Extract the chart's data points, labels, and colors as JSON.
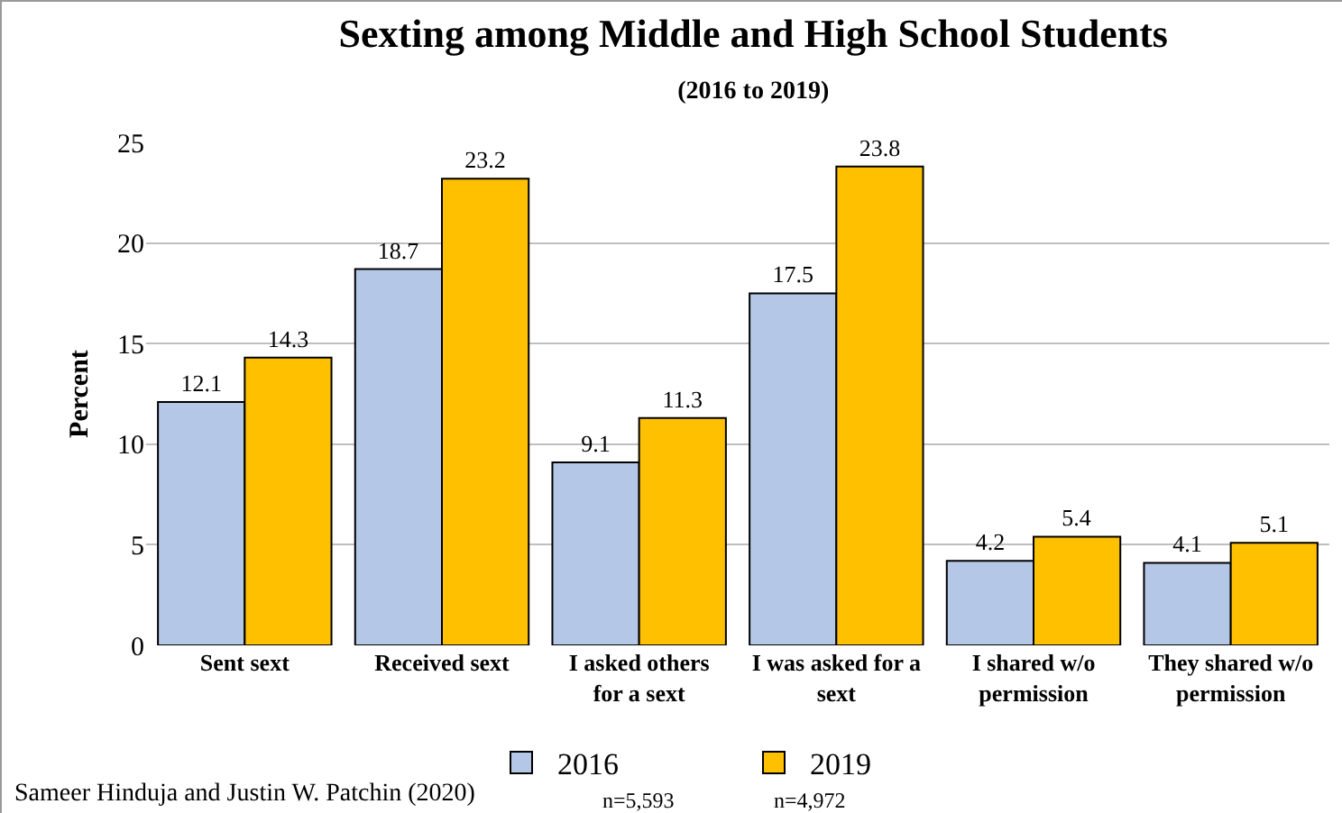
{
  "chart_data": {
    "type": "bar",
    "title": "Sexting among Middle and High School Students",
    "subtitle": "(2016 to 2019)",
    "ylabel": "Percent",
    "categories": [
      "Sent sext",
      "Received sext",
      "I asked others for a sext",
      "I was asked for a sext",
      "I shared w/o permission",
      "They shared w/o permission"
    ],
    "series": [
      {
        "name": "2016",
        "color": "#b4c7e7",
        "values": [
          12.1,
          18.7,
          9.1,
          17.5,
          4.2,
          4.1
        ]
      },
      {
        "name": "2019",
        "color": "#ffc000",
        "values": [
          14.3,
          23.2,
          11.3,
          23.8,
          5.4,
          5.1
        ]
      }
    ],
    "ylim": [
      0,
      25
    ],
    "yticks": [
      0,
      5,
      10,
      15,
      20,
      25
    ],
    "grid": "y",
    "legend": "bottom",
    "data_labels": true,
    "annotations": [
      "n=5,593",
      "n=4,972",
      "Sameer Hinduja and Justin W. Patchin (2020)"
    ]
  }
}
